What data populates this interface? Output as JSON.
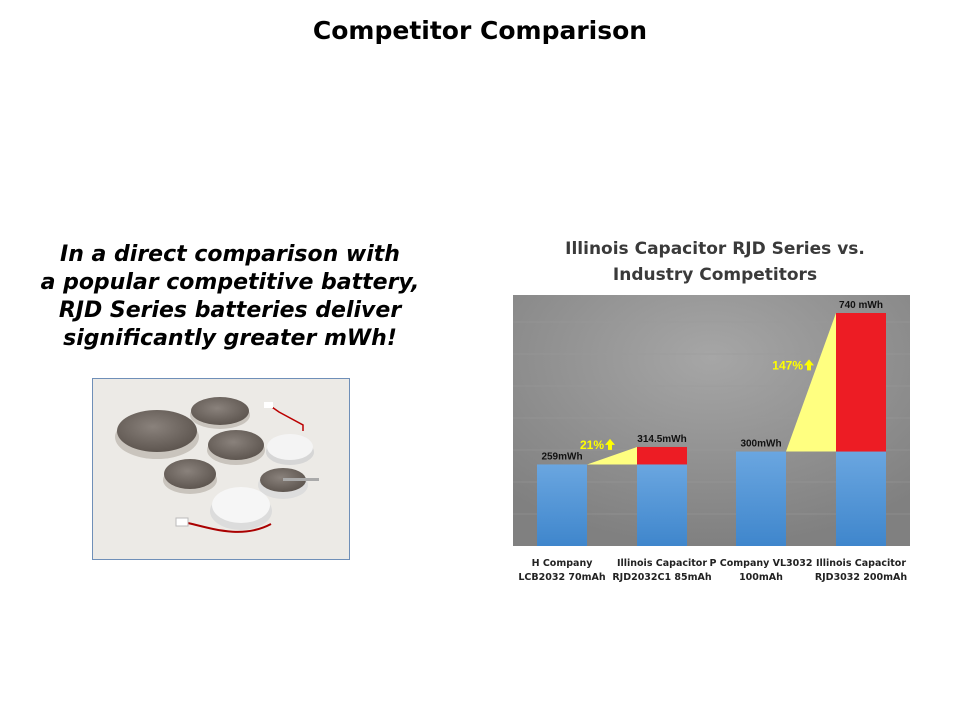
{
  "slide": {
    "title": "Competitor Comparison",
    "lead_lines": [
      "In a direct comparison with",
      "a popular competitive battery,",
      "RJD Series batteries deliver",
      "significantly greater mWh!"
    ]
  },
  "photo": {
    "subject": "coin-cell-batteries"
  },
  "chart_data": {
    "type": "bar",
    "title_lines": [
      "Illinois Capacitor RJD Series vs.",
      "Industry Competitors"
    ],
    "categories": [
      [
        "H Company",
        "LCB2032 70mAh"
      ],
      [
        "Illinois Capacitor",
        "RJD2032C1 85mAh"
      ],
      [
        "P Company VL3032",
        "100mAh"
      ],
      [
        "Illinois Capacitor",
        "RJD3032 200mAh"
      ]
    ],
    "values": [
      259,
      314.5,
      300,
      740
    ],
    "data_labels": [
      "259mWh",
      "314.5mWh",
      "300mWh",
      "740 mWh"
    ],
    "comparisons": [
      {
        "from": 0,
        "to": 1,
        "label": "21%"
      },
      {
        "from": 2,
        "to": 3,
        "label": "147%"
      }
    ],
    "grid": true,
    "colors": {
      "bar": "#5b9bd5",
      "increase": "#ed1c24",
      "wedge": "#ffff80",
      "pct_label": "#ffff00",
      "plot_bg": "#808080"
    }
  }
}
